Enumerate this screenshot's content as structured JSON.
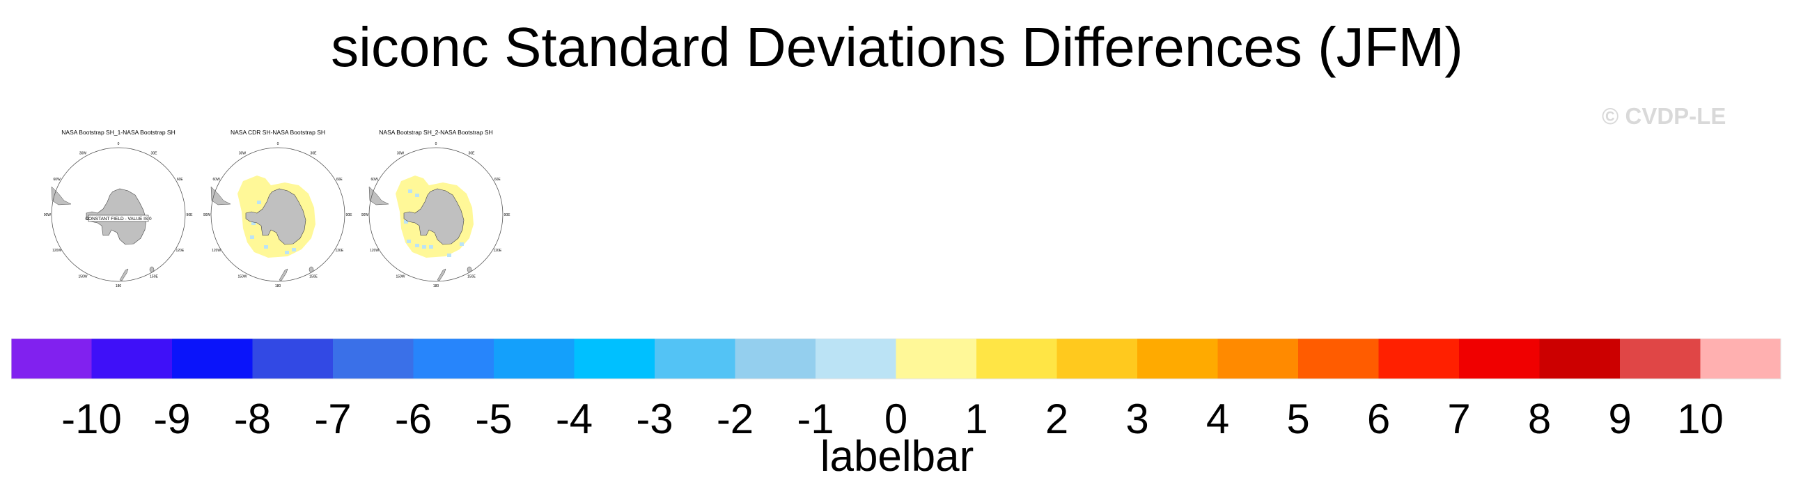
{
  "title": "siconc Standard Deviations Differences (JFM)",
  "watermark": "© CVDP-LE",
  "chart_data": [
    {
      "type": "heatmap",
      "title": "NASA Bootstrap SH_1-NASA Bootstrap SH",
      "annotation": "CONSTANT FIELD - VALUE IS 0",
      "anomaly_pattern": "none",
      "lon_labels": [
        "0",
        "30E",
        "60E",
        "90E",
        "120E",
        "150E",
        "180",
        "150W",
        "120W",
        "90W",
        "60W",
        "30W"
      ]
    },
    {
      "type": "heatmap",
      "title": "NASA CDR SH-NASA Bootstrap SH",
      "anomaly_pattern": "mostly 0 to 1 (pale yellow) around the sea-ice edge with scattered -1 to 0 (light blue) cells",
      "lon_labels": [
        "0",
        "30E",
        "60E",
        "90E",
        "120E",
        "150E",
        "180",
        "150W",
        "120W",
        "90W",
        "60W",
        "30W"
      ]
    },
    {
      "type": "heatmap",
      "title": "NASA Bootstrap SH_2-NASA Bootstrap SH",
      "anomaly_pattern": "mostly 0 to 1 (pale yellow) around the sea-ice edge with more -1 to 0 (light blue) cells",
      "lon_labels": [
        "0",
        "30E",
        "60E",
        "90E",
        "120E",
        "150E",
        "180",
        "150W",
        "120W",
        "90W",
        "60W",
        "30W"
      ]
    }
  ],
  "colorbar": {
    "title": "labelbar",
    "labels": [
      "-10",
      "-9",
      "-8",
      "-7",
      "-6",
      "-5",
      "-4",
      "-3",
      "-2",
      "-1",
      "0",
      "1",
      "2",
      "3",
      "4",
      "5",
      "6",
      "7",
      "8",
      "9",
      "10"
    ],
    "colors": [
      "#8121ef",
      "#3f10f8",
      "#0a14fa",
      "#3249e4",
      "#3a70e8",
      "#2785fb",
      "#14a0fb",
      "#00c0ff",
      "#53c3f5",
      "#94cfee",
      "#bbe3f5",
      "#fff898",
      "#ffe545",
      "#ffc91e",
      "#ffaa00",
      "#ff8a00",
      "#ff5c00",
      "#ff2000",
      "#f00000",
      "#cc0000",
      "#e04646",
      "#ffb0b0"
    ]
  },
  "map_colors": {
    "land": "#c0c0c0",
    "positive_small": "#fff898",
    "negative_small": "#bbe3f5"
  }
}
